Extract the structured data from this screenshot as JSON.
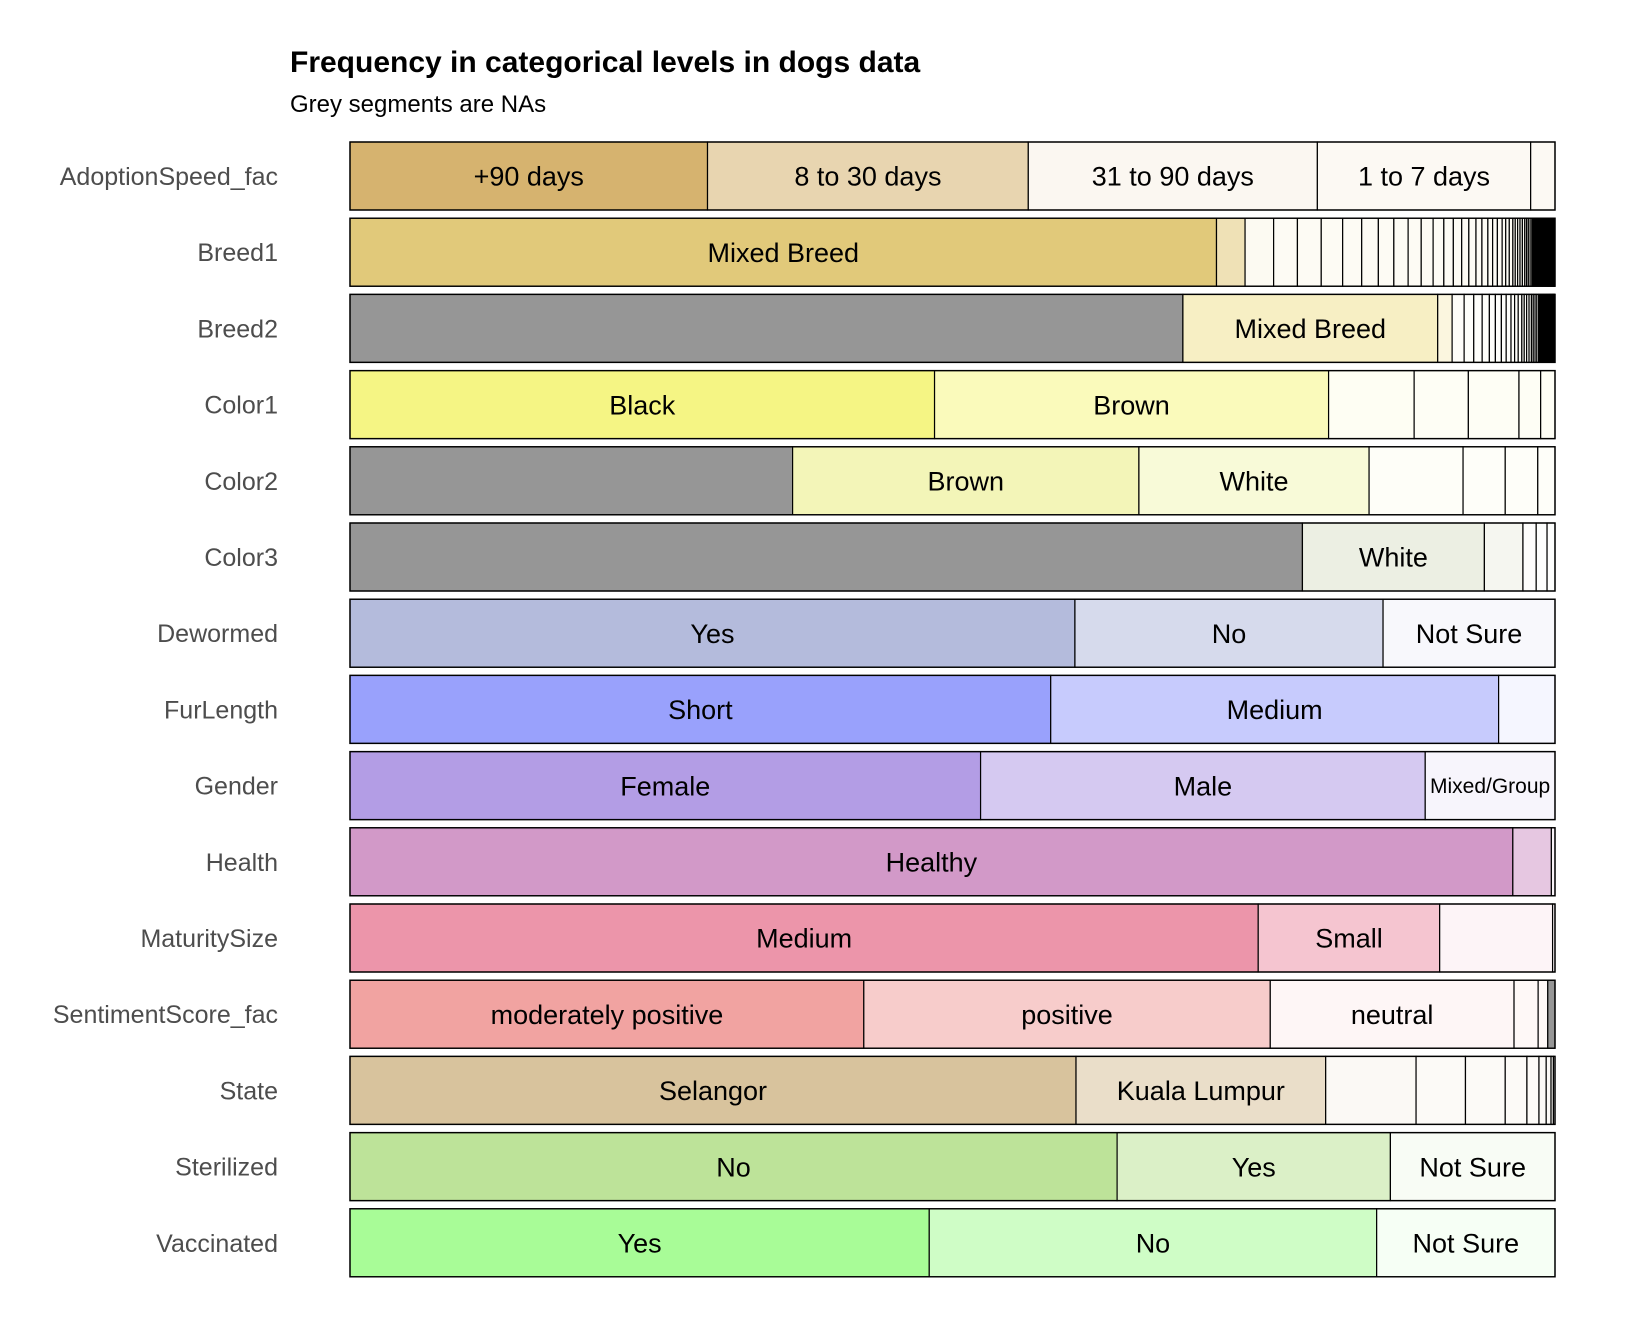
{
  "chart_data": {
    "type": "bar",
    "orientation": "horizontal",
    "stacked": "proportional",
    "title": "Frequency in categorical levels in dogs data",
    "subtitle": "Grey segments are NAs",
    "xlim": [
      0,
      1
    ],
    "grid": false,
    "legend": "none",
    "na_color": "#969696",
    "variables": [
      {
        "name": "AdoptionSpeed_fac",
        "color": "#d6b36f",
        "segments": [
          {
            "label": "+90 days",
            "value": 0.2967
          },
          {
            "label": "8 to 30 days",
            "value": 0.2662
          },
          {
            "label": "31 to 90 days",
            "value": 0.2399
          },
          {
            "label": "1 to 7 days",
            "value": 0.177
          },
          {
            "label": "",
            "value": 0.0202
          }
        ]
      },
      {
        "name": "Breed1",
        "color": "#e1c97a",
        "segments": [
          {
            "label": "Mixed Breed",
            "value": 0.728
          },
          {
            "label": "",
            "value": 0.024
          },
          {
            "label": "",
            "value": 0.024
          },
          {
            "label": "",
            "value": 0.02
          },
          {
            "label": "",
            "value": 0.02
          },
          {
            "label": "",
            "value": 0.018
          },
          {
            "label": "",
            "value": 0.016
          },
          {
            "label": "",
            "value": 0.014
          },
          {
            "label": "",
            "value": 0.013
          },
          {
            "label": "",
            "value": 0.012
          },
          {
            "label": "",
            "value": 0.011
          },
          {
            "label": "",
            "value": 0.01
          },
          {
            "label": "",
            "value": 0.009
          },
          {
            "label": "",
            "value": 0.008
          },
          {
            "label": "",
            "value": 0.007
          },
          {
            "label": "",
            "value": 0.006
          },
          {
            "label": "",
            "value": 0.006
          },
          {
            "label": "",
            "value": 0.005
          },
          {
            "label": "",
            "value": 0.005
          },
          {
            "label": "",
            "value": 0.004
          },
          {
            "label": "",
            "value": 0.004
          },
          {
            "label": "",
            "value": 0.004
          },
          {
            "label": "",
            "value": 0.003
          },
          {
            "label": "",
            "value": 0.003
          },
          {
            "label": "",
            "value": 0.003
          },
          {
            "label": "",
            "value": 0.002
          },
          {
            "label": "",
            "value": 0.002
          },
          {
            "label": "",
            "value": 0.002
          },
          {
            "label": "",
            "value": 0.002
          },
          {
            "label": "",
            "value": 0.002
          },
          {
            "label": "",
            "value": 0.0015
          },
          {
            "label": "",
            "value": 0.0015
          },
          {
            "label": "",
            "value": 0.0015
          },
          {
            "label": "",
            "value": 0.0015
          },
          {
            "label": "",
            "value": 0.001
          },
          {
            "label": "",
            "value": 0.001
          },
          {
            "label": "",
            "value": 0.001
          },
          {
            "label": "",
            "value": 0.001
          },
          {
            "label": "",
            "value": 0.001
          },
          {
            "label": "",
            "value": 0.001
          },
          {
            "label": "",
            "value": 0.001
          },
          {
            "label": "",
            "value": 0.001
          },
          {
            "label": "",
            "value": 0.0008
          },
          {
            "label": "",
            "value": 0.0008
          },
          {
            "label": "",
            "value": 0.0008
          },
          {
            "label": "",
            "value": 0.0008
          },
          {
            "label": "",
            "value": 0.0008
          },
          {
            "label": "",
            "value": 0.0008
          },
          {
            "label": "",
            "value": 0.0006
          },
          {
            "label": "",
            "value": 0.0006
          },
          {
            "label": "",
            "value": 0.0006
          },
          {
            "label": "",
            "value": 0.0006
          },
          {
            "label": "",
            "value": 0.0006
          },
          {
            "label": "",
            "value": 0.0006
          },
          {
            "label": "",
            "value": 0.0005
          },
          {
            "label": "",
            "value": 0.0005
          },
          {
            "label": "",
            "value": 0.0005
          },
          {
            "label": "",
            "value": 0.0005
          },
          {
            "label": "",
            "value": 0.0005
          },
          {
            "label": "",
            "value": 0.0005
          }
        ]
      },
      {
        "name": "Breed2",
        "color": "#f7efc4",
        "segments": [
          {
            "label": "",
            "value": 0.693,
            "na": true
          },
          {
            "label": "Mixed Breed",
            "value": 0.212
          },
          {
            "label": "",
            "value": 0.012
          },
          {
            "label": "",
            "value": 0.01
          },
          {
            "label": "",
            "value": 0.008
          },
          {
            "label": "",
            "value": 0.007
          },
          {
            "label": "",
            "value": 0.006
          },
          {
            "label": "",
            "value": 0.005
          },
          {
            "label": "",
            "value": 0.005
          },
          {
            "label": "",
            "value": 0.004
          },
          {
            "label": "",
            "value": 0.004
          },
          {
            "label": "",
            "value": 0.003
          },
          {
            "label": "",
            "value": 0.003
          },
          {
            "label": "",
            "value": 0.003
          },
          {
            "label": "",
            "value": 0.002
          },
          {
            "label": "",
            "value": 0.002
          },
          {
            "label": "",
            "value": 0.002
          },
          {
            "label": "",
            "value": 0.002
          },
          {
            "label": "",
            "value": 0.0015
          },
          {
            "label": "",
            "value": 0.0015
          },
          {
            "label": "",
            "value": 0.0015
          },
          {
            "label": "",
            "value": 0.0015
          },
          {
            "label": "",
            "value": 0.001
          },
          {
            "label": "",
            "value": 0.001
          },
          {
            "label": "",
            "value": 0.001
          },
          {
            "label": "",
            "value": 0.001
          },
          {
            "label": "",
            "value": 0.001
          },
          {
            "label": "",
            "value": 0.001
          },
          {
            "label": "",
            "value": 0.0008
          },
          {
            "label": "",
            "value": 0.0008
          },
          {
            "label": "",
            "value": 0.0008
          },
          {
            "label": "",
            "value": 0.0008
          },
          {
            "label": "",
            "value": 0.0006
          },
          {
            "label": "",
            "value": 0.0006
          },
          {
            "label": "",
            "value": 0.0006
          },
          {
            "label": "",
            "value": 0.0006
          },
          {
            "label": "",
            "value": 0.0005
          },
          {
            "label": "",
            "value": 0.0005
          },
          {
            "label": "",
            "value": 0.0005
          },
          {
            "label": "",
            "value": 0.0005
          }
        ]
      },
      {
        "name": "Color1",
        "color": "#f5f584",
        "segments": [
          {
            "label": "Black",
            "value": 0.4851
          },
          {
            "label": "Brown",
            "value": 0.327
          },
          {
            "label": "",
            "value": 0.071
          },
          {
            "label": "",
            "value": 0.045
          },
          {
            "label": "",
            "value": 0.042
          },
          {
            "label": "",
            "value": 0.018
          },
          {
            "label": "",
            "value": 0.0119
          }
        ]
      },
      {
        "name": "Color2",
        "color": "#f3f5b8",
        "segments": [
          {
            "label": "",
            "value": 0.3673,
            "na": true
          },
          {
            "label": "Brown",
            "value": 0.2874
          },
          {
            "label": "White",
            "value": 0.191
          },
          {
            "label": "",
            "value": 0.078
          },
          {
            "label": "",
            "value": 0.035
          },
          {
            "label": "",
            "value": 0.027
          },
          {
            "label": "",
            "value": 0.0143
          }
        ]
      },
      {
        "name": "Color3",
        "color": "#ecefe3",
        "segments": [
          {
            "label": "",
            "value": 0.7904,
            "na": true
          },
          {
            "label": "White",
            "value": 0.151
          },
          {
            "label": "",
            "value": 0.032
          },
          {
            "label": "",
            "value": 0.011
          },
          {
            "label": "",
            "value": 0.009
          },
          {
            "label": "",
            "value": 0.0066
          }
        ]
      },
      {
        "name": "Dewormed",
        "color": "#b4bbdc",
        "segments": [
          {
            "label": "Yes",
            "value": 0.6016
          },
          {
            "label": "No",
            "value": 0.2557
          },
          {
            "label": "Not Sure",
            "value": 0.1427
          }
        ]
      },
      {
        "name": "FurLength",
        "color": "#99a1fc",
        "segments": [
          {
            "label": "Short",
            "value": 0.5815
          },
          {
            "label": "Medium",
            "value": 0.3717
          },
          {
            "label": "",
            "value": 0.0468
          }
        ]
      },
      {
        "name": "Gender",
        "color": "#b39de5",
        "segments": [
          {
            "label": "Female",
            "value": 0.5233
          },
          {
            "label": "Male",
            "value": 0.369
          },
          {
            "label": "Mixed/Group",
            "value": 0.1077
          }
        ]
      },
      {
        "name": "Health",
        "color": "#d299c8",
        "segments": [
          {
            "label": "Healthy",
            "value": 0.965
          },
          {
            "label": "",
            "value": 0.032
          },
          {
            "label": "",
            "value": 0.003
          }
        ]
      },
      {
        "name": "MaturitySize",
        "color": "#ec95aa",
        "segments": [
          {
            "label": "Medium",
            "value": 0.7537
          },
          {
            "label": "Small",
            "value": 0.1506
          },
          {
            "label": "",
            "value": 0.0937
          },
          {
            "label": "",
            "value": 0.002
          }
        ]
      },
      {
        "name": "SentimentScore_fac",
        "color": "#f1a3a1",
        "segments": [
          {
            "label": "moderately positive",
            "value": 0.4264
          },
          {
            "label": "positive",
            "value": 0.3373
          },
          {
            "label": "neutral",
            "value": 0.2023
          },
          {
            "label": "",
            "value": 0.02
          },
          {
            "label": "",
            "value": 0.008
          },
          {
            "label": "",
            "value": 0.006,
            "na": true
          }
        ]
      },
      {
        "name": "State",
        "color": "#d8c39d",
        "segments": [
          {
            "label": "Selangor",
            "value": 0.6025
          },
          {
            "label": "Kuala Lumpur",
            "value": 0.2072
          },
          {
            "label": "",
            "value": 0.075
          },
          {
            "label": "",
            "value": 0.041
          },
          {
            "label": "",
            "value": 0.033
          },
          {
            "label": "",
            "value": 0.018
          },
          {
            "label": "",
            "value": 0.01
          },
          {
            "label": "",
            "value": 0.006
          },
          {
            "label": "",
            "value": 0.004
          },
          {
            "label": "",
            "value": 0.002
          },
          {
            "label": "",
            "value": 0.0013
          }
        ]
      },
      {
        "name": "Sterilized",
        "color": "#bde399",
        "segments": [
          {
            "label": "No",
            "value": 0.6366
          },
          {
            "label": "Yes",
            "value": 0.2268
          },
          {
            "label": "Not Sure",
            "value": 0.1366
          }
        ]
      },
      {
        "name": "Vaccinated",
        "color": "#a8fc97",
        "segments": [
          {
            "label": "Yes",
            "value": 0.4807
          },
          {
            "label": "No",
            "value": 0.3713
          },
          {
            "label": "Not Sure",
            "value": 0.148
          }
        ]
      }
    ]
  }
}
